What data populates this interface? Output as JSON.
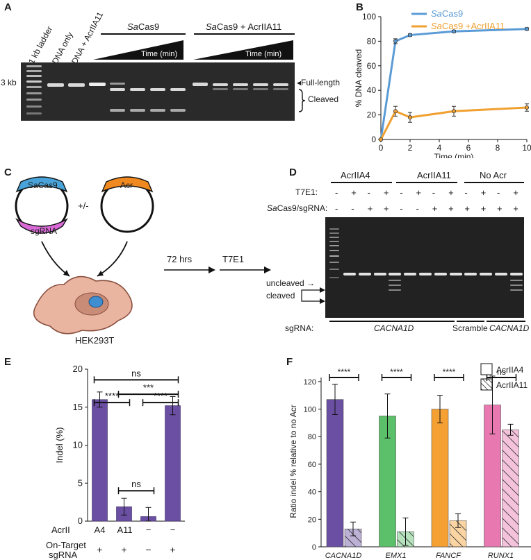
{
  "panels": {
    "a": {
      "label": "A",
      "lanes": [
        "1 kb ladder",
        "DNA only",
        "DNA + AcrIIA11"
      ],
      "group1_title_italic": "Sa",
      "group1_title_rest": "Cas9",
      "group2_title_italic": "Sa",
      "group2_title_rest": "Cas9 + AcrIIA11",
      "time_label": "Time (min)",
      "size_label": "3 kb",
      "full_length_label": "Full-length",
      "cleaved_label": "Cleaved"
    },
    "b": {
      "label": "B"
    },
    "c": {
      "label": "C",
      "cas_label": "SaCas9",
      "sgrna_label": "sgRNA",
      "acr_label": "Acr",
      "plusminus": "+/-",
      "cell_label": "HEK293T",
      "step1": "72 hrs",
      "step2": "T7E1"
    },
    "d": {
      "label": "D",
      "groups": [
        "AcrIIA4",
        "AcrIIA11",
        "No Acr"
      ],
      "row1_label": "T7E1:",
      "row2_label_italic": "Sa",
      "row2_label_rest": "Cas9/sgRNA:",
      "t7e1_signs": [
        "-",
        "+",
        "-",
        "+",
        "-",
        "+",
        "-",
        "+",
        "-",
        "+",
        "-",
        "+"
      ],
      "cas_signs": [
        "-",
        "-",
        "+",
        "+",
        "-",
        "-",
        "+",
        "+",
        "+",
        "+",
        "+",
        "+"
      ],
      "uncleaved_label": "uncleaved",
      "cleaved_label": "cleaved",
      "sgrna_row_label": "sgRNA:",
      "sgrna_groups": [
        "CACNA1D",
        "Scramble",
        "CACNA1D"
      ]
    },
    "e": {
      "label": "E",
      "acr_row_label": "AcrII",
      "acr_values": [
        "A4",
        "A11",
        "−",
        "−"
      ],
      "target_row_label_1": "On-Target",
      "target_row_label_2": "sgRNA",
      "target_values": [
        "+",
        "+",
        "−",
        "+"
      ]
    },
    "f": {
      "label": "F"
    }
  },
  "chart_data": [
    {
      "panel": "B",
      "type": "line",
      "xlabel": "Time (min)",
      "ylabel": "% DNA cleaved",
      "xlim": [
        0,
        10
      ],
      "ylim": [
        0,
        100
      ],
      "xticks": [
        0,
        2,
        4,
        6,
        8,
        10
      ],
      "yticks": [
        0,
        20,
        40,
        60,
        80,
        100
      ],
      "legend_position": "top-right",
      "series": [
        {
          "name_italic": "Sa",
          "name_rest": "Cas9",
          "color": "#5b9bd5",
          "x": [
            0,
            1,
            2,
            5,
            10
          ],
          "y": [
            0,
            80,
            85,
            88,
            90
          ],
          "err": [
            0,
            2,
            1,
            1,
            1
          ]
        },
        {
          "name_italic": "Sa",
          "name_rest": "Cas9 +AcrIIA11",
          "color": "#f0a030",
          "x": [
            0,
            1,
            2,
            5,
            10
          ],
          "y": [
            0,
            23,
            18,
            23,
            26
          ],
          "err": [
            0,
            4,
            4,
            4,
            3
          ]
        }
      ]
    },
    {
      "panel": "E",
      "type": "bar",
      "ylabel": "Indel (%)",
      "ylim": [
        0,
        20
      ],
      "yticks": [
        0,
        5,
        10,
        15,
        20
      ],
      "color": "#6a4fa3",
      "categories": [
        "A4",
        "A11",
        "−",
        "−"
      ],
      "values": [
        16.0,
        1.9,
        0.6,
        15.2
      ],
      "err": [
        1.0,
        1.1,
        1.2,
        1.2
      ],
      "significance": [
        {
          "from": 0,
          "to": 3,
          "label": "ns",
          "y": 18.6
        },
        {
          "from": 1,
          "to": 3,
          "label": "***",
          "y": 16.7
        },
        {
          "from": 0,
          "to": 1,
          "label": "****",
          "y": 15.6
        },
        {
          "from": 2,
          "to": 3,
          "label": "****",
          "y": 15.6
        },
        {
          "from": 1,
          "to": 2,
          "label": "ns",
          "y": 4.0
        }
      ]
    },
    {
      "panel": "F",
      "type": "bar",
      "ylabel": "Ratio indel % relative to no Acr",
      "ylim": [
        0,
        130
      ],
      "yticks": [
        0,
        20,
        40,
        60,
        80,
        100,
        120
      ],
      "categories": [
        "CACNA1D",
        "EMX1",
        "FANCF",
        "RUNX1"
      ],
      "colors": [
        "#6a4fa3",
        "#5cbf6a",
        "#f5a033",
        "#e879b0"
      ],
      "series": [
        {
          "name": "AcrIIA4",
          "values": [
            107,
            95,
            100,
            103
          ],
          "err": [
            11,
            16,
            10,
            21
          ]
        },
        {
          "name": "AcrIIA11",
          "values": [
            13,
            11,
            19,
            85
          ],
          "err": [
            5,
            10,
            5,
            4
          ]
        }
      ],
      "significance": [
        "****",
        "****",
        "****",
        "ns"
      ],
      "legend_position": "top-right"
    }
  ]
}
